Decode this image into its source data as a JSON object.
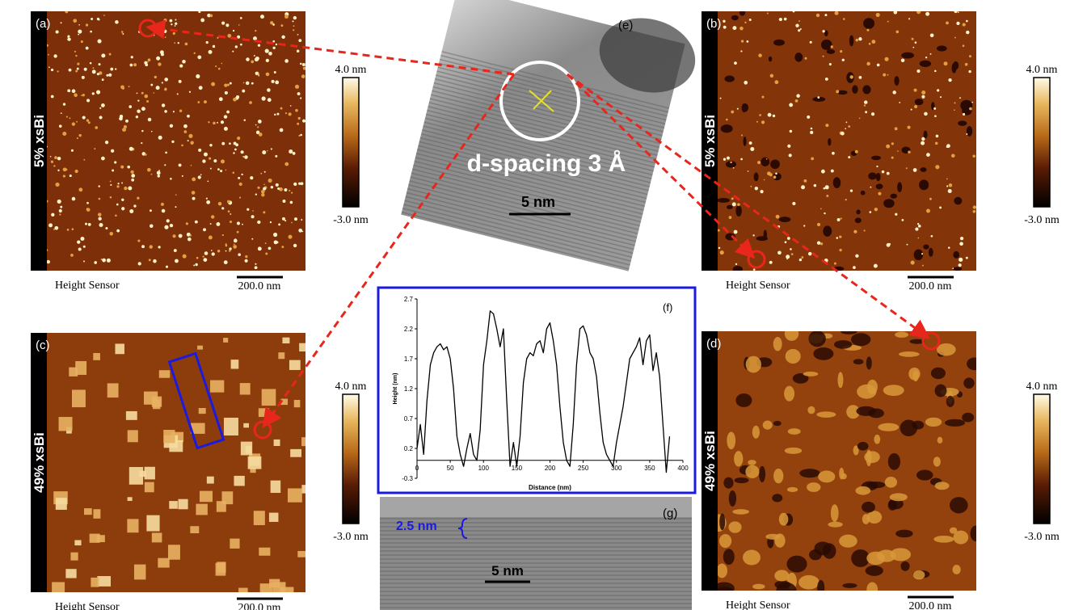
{
  "panels": [
    {
      "label": "(a)",
      "sample": "5% xsBi",
      "sensor": "Height Sensor",
      "scale_bar": "200.0 nm",
      "colorbar": {
        "max": "4.0 nm",
        "min": "-3.0 nm"
      }
    },
    {
      "label": "(b)",
      "sample": "5% xsBi",
      "sensor": "Height Sensor",
      "scale_bar": "200.0 nm",
      "colorbar": {
        "max": "4.0 nm",
        "min": "-3.0 nm"
      }
    },
    {
      "label": "(c)",
      "sample": "49% xsBi",
      "sensor": "Height Sensor",
      "scale_bar": "200.0 nm",
      "colorbar": {
        "max": "4.0 nm",
        "min": "-3.0 nm"
      }
    },
    {
      "label": "(d)",
      "sample": "49% xsBi",
      "sensor": "Height Sensor",
      "scale_bar": "200.0 nm",
      "colorbar": {
        "max": "4.0 nm",
        "min": "-3.0 nm"
      }
    }
  ],
  "tem_e": {
    "label": "(e)",
    "annotation": "d-spacing 3 Å",
    "scale_bar": "5 nm"
  },
  "profile_f": {
    "label": "(f)",
    "x_label": "Distance (nm)",
    "y_label": "Height (nm)",
    "xlim": [
      0,
      400
    ],
    "ylim": [
      -0.3,
      2.7
    ],
    "xticks": [
      0,
      50,
      100,
      150,
      200,
      250,
      300,
      350,
      400
    ],
    "yticks": [
      -0.3,
      0.2,
      0.7,
      1.2,
      1.7,
      2.2,
      2.7
    ],
    "x": [
      0,
      5,
      10,
      15,
      20,
      25,
      30,
      35,
      40,
      45,
      50,
      55,
      60,
      65,
      70,
      75,
      80,
      85,
      90,
      95,
      100,
      105,
      110,
      115,
      120,
      125,
      130,
      135,
      140,
      145,
      150,
      155,
      160,
      165,
      170,
      175,
      180,
      185,
      190,
      195,
      200,
      205,
      210,
      215,
      220,
      225,
      230,
      235,
      240,
      245,
      250,
      255,
      260,
      265,
      270,
      275,
      280,
      285,
      290,
      295,
      300,
      305,
      310,
      315,
      320,
      325,
      330,
      335,
      340,
      345,
      350,
      355,
      360,
      365,
      370,
      375,
      380
    ],
    "y": [
      0.2,
      0.6,
      0.1,
      1.0,
      1.6,
      1.8,
      1.9,
      1.95,
      1.85,
      1.9,
      1.7,
      1.2,
      0.4,
      0.1,
      -0.1,
      0.2,
      0.45,
      0.1,
      0.0,
      0.5,
      1.6,
      2.0,
      2.5,
      2.45,
      2.2,
      1.9,
      2.2,
      1.0,
      -0.1,
      0.3,
      -0.1,
      0.4,
      1.3,
      1.7,
      1.8,
      1.75,
      1.95,
      2.0,
      1.8,
      2.2,
      2.3,
      2.0,
      1.6,
      0.9,
      0.3,
      0.0,
      -0.1,
      0.6,
      1.6,
      2.2,
      2.25,
      2.1,
      1.8,
      1.7,
      1.4,
      0.8,
      0.3,
      0.1,
      0.0,
      -0.1,
      0.3,
      0.6,
      0.9,
      1.3,
      1.7,
      1.8,
      1.9,
      2.05,
      1.6,
      2.0,
      2.1,
      1.5,
      1.8,
      1.4,
      0.6,
      -0.2,
      0.4
    ]
  },
  "tem_g": {
    "label": "(g)",
    "thickness": "2.5 nm",
    "scale_bar": "5 nm"
  }
}
